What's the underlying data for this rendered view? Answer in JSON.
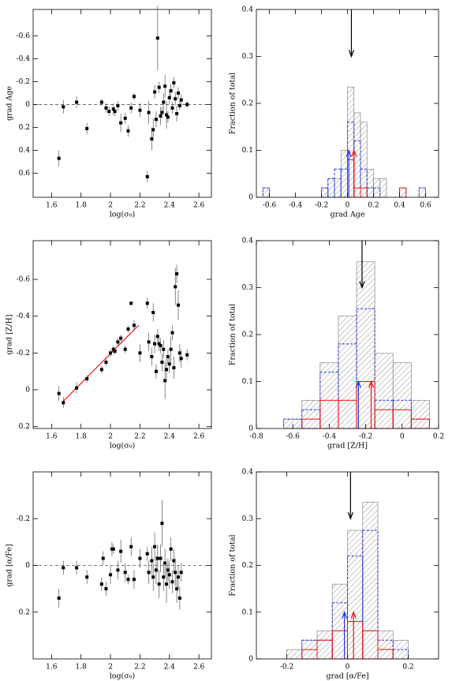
{
  "chart_data": [
    {
      "type": "scatter",
      "x_label": "log(σ₀)",
      "y_label": "grad Age",
      "xlim": [
        1.475,
        2.685
      ],
      "ylim": [
        0.81,
        -0.83
      ],
      "xticks": [
        1.6,
        1.8,
        2,
        2.2,
        2.4,
        2.6
      ],
      "yticks": [
        0.6,
        0.4,
        0.2,
        0,
        -0.2,
        -0.4,
        -0.6
      ],
      "hline": 0,
      "x": [
        1.65,
        1.68,
        1.77,
        1.84,
        1.94,
        1.97,
        1.99,
        2.02,
        2.03,
        2.05,
        2.07,
        2.1,
        2.12,
        2.14,
        2.16,
        2.2,
        2.25,
        2.26,
        2.28,
        2.29,
        2.3,
        2.31,
        2.32,
        2.33,
        2.34,
        2.35,
        2.36,
        2.37,
        2.38,
        2.39,
        2.4,
        2.41,
        2.42,
        2.43,
        2.44,
        2.45,
        2.46,
        2.47,
        2.48,
        2.52
      ],
      "values": [
        0.47,
        0.02,
        -0.02,
        0.21,
        -0.02,
        0.03,
        0.06,
        0.04,
        0.06,
        0.01,
        0.16,
        0.12,
        0.23,
        0.03,
        -0.07,
        0.05,
        0.63,
        0.07,
        0.3,
        0.22,
        -0.11,
        0.13,
        -0.58,
        -0.15,
        0.1,
        0.07,
        -0.02,
        -0.16,
        0.09,
        0.11,
        -0.06,
        -0.12,
        0.03,
        -0.19,
        -0.05,
        0.08,
        -0.1,
        0.01,
        -0.04,
        0
      ],
      "errors": [
        0.07,
        0.06,
        0.05,
        0.05,
        0.03,
        0.04,
        0.04,
        0.05,
        0.04,
        0.04,
        0.08,
        0.05,
        0.05,
        0.05,
        0.03,
        0.06,
        0.05,
        0.1,
        0.1,
        0.1,
        0.06,
        0.07,
        0.28,
        0.05,
        0.08,
        0.05,
        0.08,
        0.1,
        0.12,
        0.05,
        0.06,
        0.06,
        0.05,
        0.05,
        0.06,
        0.07,
        0.05,
        0.04,
        0.05,
        0.03
      ]
    },
    {
      "type": "histogram",
      "x_label": "grad Age",
      "y_label": "Fraction of total",
      "xlim": [
        -0.7,
        0.7
      ],
      "ylim": [
        0,
        0.4
      ],
      "xticks": [
        -0.6,
        -0.4,
        -0.2,
        0,
        0.2,
        0.4,
        0.6
      ],
      "yticks": [
        0,
        0.1,
        0.2,
        0.3,
        0.4
      ],
      "bins": [
        -0.65,
        -0.6,
        -0.55,
        -0.5,
        -0.45,
        -0.4,
        -0.35,
        -0.3,
        -0.25,
        -0.2,
        -0.15,
        -0.1,
        -0.05,
        0,
        0.05,
        0.1,
        0.15,
        0.2,
        0.25,
        0.3,
        0.35,
        0.4,
        0.45,
        0.5,
        0.55,
        0.6,
        0.65,
        0.7
      ],
      "series": [
        {
          "color": "#888888",
          "style": "hatch",
          "values": [
            0.02,
            0,
            0,
            0,
            0,
            0,
            0,
            0,
            0,
            0.02,
            0.04,
            0.04,
            0.1,
            0.235,
            0.18,
            0.16,
            0.06,
            0.04,
            0.04,
            0,
            0,
            0.02,
            0,
            0,
            0.02,
            0,
            0
          ]
        },
        {
          "color": "#2233dd",
          "style": "dashed",
          "values": [
            0.02,
            0,
            0,
            0,
            0,
            0,
            0,
            0,
            0,
            0.02,
            0.04,
            0.06,
            0.06,
            0.16,
            0.12,
            0.06,
            0.02,
            0.02,
            0,
            0,
            0,
            0,
            0,
            0,
            0.02,
            0,
            0
          ]
        },
        {
          "color": "#ee1111",
          "style": "solid",
          "values": [
            0,
            0,
            0,
            0,
            0,
            0,
            0,
            0,
            0,
            0,
            0,
            0,
            0,
            0.08,
            0.02,
            0.02,
            0,
            0,
            0,
            0,
            0,
            0.02,
            0,
            0,
            0,
            0,
            0
          ]
        }
      ],
      "arrows": [
        {
          "x": 0.03,
          "from": 0.4,
          "to": 0.3,
          "color": "#000000"
        },
        {
          "x": 0.01,
          "from": 0,
          "to": 0.1,
          "color": "#2233dd"
        },
        {
          "x": 0.05,
          "from": 0,
          "to": 0.1,
          "color": "#ee1111"
        }
      ]
    },
    {
      "type": "scatter",
      "x_label": "log(σ₀)",
      "y_label": "grad [Z/H]",
      "xlim": [
        1.475,
        2.685
      ],
      "ylim": [
        0.21,
        -0.81
      ],
      "xticks": [
        1.6,
        1.8,
        2,
        2.2,
        2.4,
        2.6
      ],
      "yticks": [
        0.2,
        0,
        -0.2,
        -0.4,
        -0.6
      ],
      "fit": {
        "x": [
          1.67,
          2.19
        ],
        "y": [
          0.07,
          -0.35
        ],
        "color": "#ee1111"
      },
      "x": [
        1.65,
        1.68,
        1.77,
        1.84,
        1.94,
        1.97,
        2,
        2.02,
        2.03,
        2.05,
        2.07,
        2.1,
        2.12,
        2.14,
        2.16,
        2.2,
        2.25,
        2.26,
        2.28,
        2.29,
        2.3,
        2.31,
        2.32,
        2.33,
        2.34,
        2.35,
        2.36,
        2.37,
        2.38,
        2.39,
        2.4,
        2.41,
        2.42,
        2.43,
        2.44,
        2.45,
        2.46,
        2.47,
        2.48,
        2.52
      ],
      "values": [
        0.02,
        0.07,
        -0.01,
        -0.06,
        -0.11,
        -0.15,
        -0.2,
        -0.22,
        -0.21,
        -0.26,
        -0.28,
        -0.22,
        -0.33,
        -0.47,
        -0.35,
        -0.2,
        -0.47,
        -0.26,
        -0.18,
        -0.42,
        -0.25,
        -0.1,
        -0.29,
        -0.25,
        -0.24,
        -0.15,
        -0.22,
        -0.05,
        -0.11,
        -0.18,
        -0.14,
        -0.22,
        -0.31,
        -0.12,
        -0.56,
        -0.63,
        -0.46,
        -0.2,
        -0.17,
        -0.19
      ],
      "errors": [
        0.04,
        0.03,
        0.03,
        0.02,
        0.02,
        0.02,
        0.02,
        0.02,
        0.02,
        0.02,
        0.02,
        0.02,
        0.02,
        0.01,
        0.03,
        0.05,
        0.03,
        0.05,
        0.05,
        0.05,
        0.05,
        0.04,
        0.04,
        0.04,
        0.04,
        0.05,
        0.05,
        0.1,
        0.06,
        0.04,
        0.05,
        0.07,
        0.04,
        0.06,
        0.1,
        0.05,
        0.08,
        0.05,
        0.05,
        0.03
      ]
    },
    {
      "type": "histogram",
      "x_label": "grad [Z/H]",
      "y_label": "Fraction of total",
      "xlim": [
        -0.8,
        0.2
      ],
      "ylim": [
        0,
        0.4
      ],
      "xticks": [
        -0.8,
        -0.6,
        -0.4,
        -0.2,
        0,
        0.2
      ],
      "yticks": [
        0,
        0.1,
        0.2,
        0.3,
        0.4
      ],
      "bins": [
        -0.65,
        -0.55,
        -0.45,
        -0.35,
        -0.25,
        -0.15,
        -0.05,
        0.05,
        0.15
      ],
      "series": [
        {
          "color": "#888888",
          "style": "hatch",
          "values": [
            0.02,
            0.06,
            0.14,
            0.24,
            0.355,
            0.16,
            0.14,
            0.06
          ]
        },
        {
          "color": "#2233dd",
          "style": "dashed",
          "values": [
            0.02,
            0.04,
            0.12,
            0.18,
            0.255,
            0.06,
            0.06,
            0.02
          ]
        },
        {
          "color": "#ee1111",
          "style": "solid",
          "values": [
            0,
            0.02,
            0.06,
            0.06,
            0.1,
            0.04,
            0.04,
            0.02
          ]
        }
      ],
      "arrows": [
        {
          "x": -0.22,
          "from": 0.4,
          "to": 0.3,
          "color": "#000000"
        },
        {
          "x": -0.24,
          "from": 0,
          "to": 0.1,
          "color": "#2233dd"
        },
        {
          "x": -0.17,
          "from": 0,
          "to": 0.1,
          "color": "#ee1111"
        }
      ]
    },
    {
      "type": "scatter",
      "x_label": "log(σ₀)",
      "y_label": "grad [α/Fe]",
      "xlim": [
        1.475,
        2.685
      ],
      "ylim": [
        0.4,
        -0.4
      ],
      "xticks": [
        1.6,
        1.8,
        2,
        2.2,
        2.4,
        2.6
      ],
      "yticks": [
        0.2,
        0,
        -0.2
      ],
      "hline": 0,
      "x": [
        1.65,
        1.68,
        1.77,
        1.84,
        1.94,
        1.95,
        1.97,
        2,
        2.01,
        2.02,
        2.05,
        2.07,
        2.1,
        2.12,
        2.14,
        2.16,
        2.2,
        2.25,
        2.26,
        2.28,
        2.29,
        2.3,
        2.31,
        2.32,
        2.33,
        2.34,
        2.35,
        2.36,
        2.37,
        2.38,
        2.39,
        2.4,
        2.41,
        2.42,
        2.43,
        2.44,
        2.45,
        2.46,
        2.47,
        2.48
      ],
      "values": [
        0.14,
        0.01,
        0.01,
        0.05,
        0.08,
        -0.03,
        0.1,
        0.04,
        -0.07,
        -0.07,
        0.02,
        -0.06,
        0.03,
        0.06,
        -0.08,
        0.06,
        -0.03,
        -0.05,
        0.03,
        -0.02,
        0.05,
        -0.08,
        0.02,
        -0.03,
        0.08,
        -0.03,
        -0.18,
        0.05,
        -0.01,
        0.08,
        0.02,
        0.04,
        -0.07,
        0.07,
        -0.02,
        0.03,
        0.1,
        0.05,
        0.14,
        0.03
      ],
      "errors": [
        0.04,
        0.03,
        0.03,
        0.03,
        0.03,
        0.03,
        0.03,
        0.04,
        0.03,
        0.02,
        0.04,
        0.05,
        0.04,
        0.02,
        0.04,
        0.04,
        0.04,
        0.03,
        0.05,
        0.06,
        0.06,
        0.06,
        0.06,
        0.06,
        0.06,
        0.06,
        0.1,
        0.06,
        0.06,
        0.08,
        0.05,
        0.06,
        0.05,
        0.05,
        0.05,
        0.06,
        0.06,
        0.05,
        0.05,
        0.04
      ]
    },
    {
      "type": "histogram",
      "x_label": "grad [α/Fe]",
      "y_label": "Fraction of total",
      "xlim": [
        -0.3,
        0.3
      ],
      "ylim": [
        0,
        0.4
      ],
      "xticks": [
        -0.2,
        0,
        0.2
      ],
      "yticks": [
        0,
        0.1,
        0.2,
        0.3,
        0.4
      ],
      "bins": [
        -0.2,
        -0.15,
        -0.1,
        -0.05,
        0,
        0.05,
        0.1,
        0.15,
        0.2
      ],
      "series": [
        {
          "color": "#888888",
          "style": "hatch",
          "values": [
            0.02,
            0.04,
            0.06,
            0.16,
            0.275,
            0.335,
            0.06,
            0.04
          ]
        },
        {
          "color": "#2233dd",
          "style": "dashed",
          "values": [
            0,
            0.04,
            0.04,
            0.12,
            0.22,
            0.275,
            0.04,
            0.02
          ]
        },
        {
          "color": "#ee1111",
          "style": "solid",
          "values": [
            0,
            0.02,
            0.04,
            0.06,
            0.08,
            0.06,
            0.02,
            0
          ]
        }
      ],
      "arrows": [
        {
          "x": 0.01,
          "from": 0.4,
          "to": 0.3,
          "color": "#000000"
        },
        {
          "x": -0.01,
          "from": 0,
          "to": 0.1,
          "color": "#2233dd"
        },
        {
          "x": 0.02,
          "from": 0,
          "to": 0.1,
          "color": "#ee1111"
        }
      ]
    }
  ]
}
